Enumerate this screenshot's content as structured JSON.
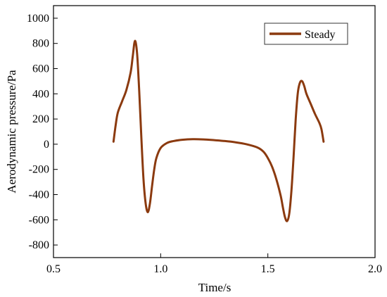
{
  "chart_data": {
    "type": "line",
    "xlabel": "Time/s",
    "ylabel": "Aerodynamic pressure/Pa",
    "xlim": [
      0.5,
      2.0
    ],
    "ylim": [
      -900,
      1100
    ],
    "x_ticks": [
      "0.5",
      "1.0",
      "1.5",
      "2.0"
    ],
    "y_ticks": [
      "-800",
      "-600",
      "-400",
      "-200",
      "0",
      "200",
      "400",
      "600",
      "800",
      "1000"
    ],
    "grid": false,
    "legend_position": "top-right",
    "series": [
      {
        "name": "Steady",
        "color": "#8B3A0F",
        "x": [
          0.78,
          0.79,
          0.8,
          0.82,
          0.84,
          0.86,
          0.87,
          0.88,
          0.89,
          0.9,
          0.91,
          0.92,
          0.93,
          0.94,
          0.95,
          0.96,
          0.97,
          0.98,
          1.0,
          1.03,
          1.06,
          1.1,
          1.15,
          1.2,
          1.25,
          1.3,
          1.35,
          1.4,
          1.45,
          1.48,
          1.5,
          1.52,
          1.54,
          1.56,
          1.57,
          1.58,
          1.59,
          1.6,
          1.61,
          1.62,
          1.63,
          1.64,
          1.65,
          1.66,
          1.67,
          1.68,
          1.7,
          1.72,
          1.74,
          1.75,
          1.76
        ],
        "y": [
          20,
          150,
          250,
          340,
          430,
          570,
          700,
          820,
          720,
          420,
          50,
          -280,
          -470,
          -540,
          -470,
          -330,
          -200,
          -110,
          -30,
          10,
          25,
          35,
          40,
          38,
          32,
          25,
          15,
          0,
          -25,
          -60,
          -110,
          -180,
          -280,
          -410,
          -500,
          -580,
          -610,
          -550,
          -370,
          -100,
          200,
          410,
          490,
          500,
          460,
          400,
          320,
          240,
          170,
          120,
          20
        ]
      }
    ]
  }
}
